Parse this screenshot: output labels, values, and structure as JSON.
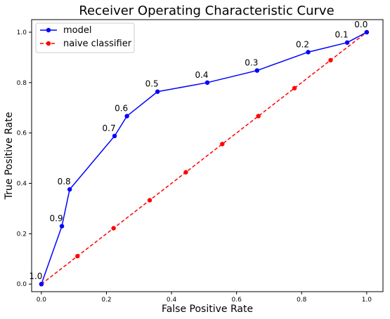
{
  "chart_data": {
    "type": "line",
    "title": "Receiver Operating Characteristic Curve",
    "xlabel": "False Positive Rate",
    "ylabel": "True Positive Rate",
    "xlim": [
      -0.03,
      1.05
    ],
    "ylim": [
      -0.03,
      1.05
    ],
    "xticks": [
      "0.0",
      "0.2",
      "0.4",
      "0.6",
      "0.8",
      "1.0"
    ],
    "yticks": [
      "0.0",
      "0.2",
      "0.4",
      "0.6",
      "0.8",
      "1.0"
    ],
    "grid": false,
    "legend": {
      "placement": "top-left"
    },
    "series": [
      {
        "name": "model",
        "color": "#0000ff",
        "linestyle": "solid",
        "x": [
          0.0,
          0.063,
          0.087,
          0.225,
          0.263,
          0.357,
          0.51,
          0.663,
          0.82,
          0.94,
          1.0
        ],
        "y": [
          0.0,
          0.23,
          0.376,
          0.588,
          0.667,
          0.764,
          0.8,
          0.848,
          0.921,
          0.959,
          1.0
        ],
        "point_labels": [
          "1.0",
          "0.9",
          "0.8",
          "0.7",
          "0.6",
          "0.5",
          "0.4",
          "0.3",
          "0.2",
          "0.1",
          "0.0"
        ]
      },
      {
        "name": "naive classifier",
        "color": "#ff0000",
        "linestyle": "dashed",
        "x": [
          0.0,
          0.111,
          0.222,
          0.333,
          0.444,
          0.556,
          0.667,
          0.778,
          0.889,
          1.0
        ],
        "y": [
          0.0,
          0.111,
          0.222,
          0.333,
          0.444,
          0.556,
          0.667,
          0.778,
          0.889,
          1.0
        ]
      }
    ]
  }
}
